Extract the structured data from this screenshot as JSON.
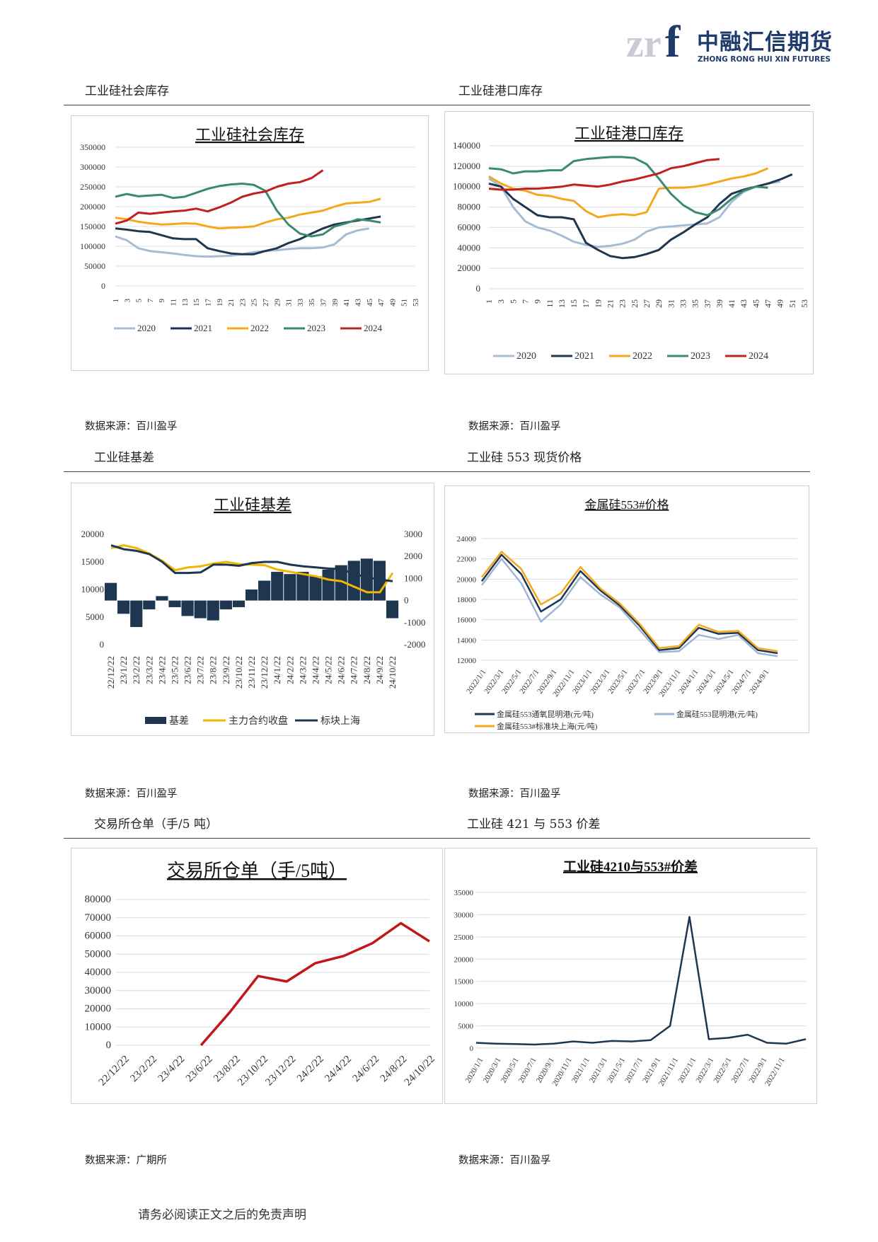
{
  "header": {
    "logo_main": "中融汇信期货",
    "logo_sub": "ZHONG RONG HUI XIN FUTURES"
  },
  "colors": {
    "c2020": "#a7bcd4",
    "c2021": "#1f3650",
    "c2022": "#f4a81c",
    "c2023": "#3a8a72",
    "c2024": "#c21f1f",
    "navy": "#1f3650",
    "gold": "#f2b600",
    "red": "#c2161b"
  },
  "sections": [
    {
      "title": "工业硅社会库存",
      "source": "数据来源：百川盈孚"
    },
    {
      "title": "工业硅港口库存",
      "source": "数据来源：百川盈孚"
    },
    {
      "title": "工业硅基差",
      "source": "数据来源：百川盈孚"
    },
    {
      "title": "工业硅 553 现货价格",
      "source": "数据来源：百川盈孚"
    },
    {
      "title": "交易所仓单（手/5 吨）",
      "source": "数据来源：广期所"
    },
    {
      "title": "工业硅 421 与 553 价差",
      "source": "数据来源：百川盈孚"
    }
  ],
  "footer": "请务必阅读正文之后的免责声明",
  "chart_data": [
    {
      "type": "line",
      "title": "工业硅社会库存",
      "categories": [
        "1",
        "3",
        "5",
        "7",
        "9",
        "11",
        "13",
        "15",
        "17",
        "19",
        "21",
        "23",
        "25",
        "27",
        "29",
        "31",
        "33",
        "35",
        "37",
        "39",
        "41",
        "43",
        "45",
        "47",
        "49",
        "51",
        "53"
      ],
      "ylim": [
        0,
        350000
      ],
      "yticks": [
        "0",
        "50000",
        "100000",
        "150000",
        "200000",
        "250000",
        "300000",
        "350000"
      ],
      "legend": "bottom",
      "series": [
        {
          "name": "2020",
          "values": [
            125000,
            115000,
            95000,
            88000,
            85000,
            82000,
            78000,
            75000,
            74000,
            75000,
            76000,
            80000,
            85000,
            88000,
            90000,
            93000,
            95000,
            95000,
            97000,
            105000,
            130000,
            140000,
            145000,
            null,
            null,
            null,
            null
          ]
        },
        {
          "name": "2021",
          "values": [
            145000,
            142000,
            138000,
            136000,
            128000,
            120000,
            118000,
            118000,
            95000,
            88000,
            82000,
            80000,
            80000,
            88000,
            95000,
            108000,
            118000,
            132000,
            145000,
            155000,
            160000,
            165000,
            170000,
            175000,
            null,
            null,
            null
          ]
        },
        {
          "name": "2022",
          "values": [
            172000,
            168000,
            162000,
            158000,
            155000,
            156000,
            158000,
            157000,
            150000,
            145000,
            147000,
            148000,
            150000,
            160000,
            168000,
            172000,
            180000,
            185000,
            190000,
            200000,
            208000,
            210000,
            212000,
            220000,
            null,
            null,
            null
          ]
        },
        {
          "name": "2023",
          "values": [
            225000,
            232000,
            226000,
            228000,
            230000,
            222000,
            225000,
            235000,
            245000,
            252000,
            256000,
            258000,
            255000,
            240000,
            190000,
            155000,
            132000,
            125000,
            130000,
            150000,
            158000,
            168000,
            165000,
            160000,
            null,
            null,
            null
          ]
        },
        {
          "name": "2024",
          "values": [
            157000,
            165000,
            185000,
            182000,
            185000,
            188000,
            190000,
            195000,
            188000,
            198000,
            210000,
            225000,
            233000,
            238000,
            250000,
            258000,
            262000,
            272000,
            292000,
            null,
            null,
            null,
            null,
            null,
            null,
            null,
            null
          ]
        }
      ]
    },
    {
      "type": "line",
      "title": "工业硅港口库存",
      "categories": [
        "1",
        "3",
        "5",
        "7",
        "9",
        "11",
        "13",
        "15",
        "17",
        "19",
        "21",
        "23",
        "25",
        "27",
        "29",
        "31",
        "33",
        "35",
        "37",
        "39",
        "41",
        "43",
        "45",
        "47",
        "49",
        "51",
        "53"
      ],
      "ylim": [
        0,
        140000
      ],
      "yticks": [
        "0",
        "20000",
        "40000",
        "60000",
        "80000",
        "100000",
        "120000",
        "140000"
      ],
      "legend": "bottom",
      "series": [
        {
          "name": "2020",
          "values": [
            108000,
            100000,
            80000,
            66000,
            60000,
            57000,
            52000,
            46000,
            43000,
            41000,
            42000,
            44000,
            48000,
            56000,
            60000,
            61000,
            62000,
            63000,
            64000,
            70000,
            85000,
            95000,
            100000,
            103000,
            105000,
            null,
            null
          ]
        },
        {
          "name": "2021",
          "values": [
            103000,
            100000,
            88000,
            80000,
            72000,
            70000,
            70000,
            68000,
            45000,
            38000,
            32000,
            30000,
            31000,
            34000,
            38000,
            48000,
            55000,
            63000,
            70000,
            83000,
            93000,
            97000,
            100000,
            103000,
            107000,
            112000,
            null
          ]
        },
        {
          "name": "2022",
          "values": [
            110000,
            103000,
            98000,
            96000,
            92000,
            91000,
            88000,
            86000,
            76000,
            70000,
            72000,
            73000,
            72000,
            75000,
            98000,
            99000,
            99000,
            100000,
            102000,
            105000,
            108000,
            110000,
            113000,
            118000,
            null,
            null,
            null
          ]
        },
        {
          "name": "2023",
          "values": [
            118000,
            117000,
            113000,
            115000,
            115000,
            116000,
            116000,
            125000,
            127000,
            128000,
            129000,
            129000,
            128000,
            122000,
            108000,
            93000,
            82000,
            75000,
            72000,
            78000,
            88000,
            96000,
            100000,
            99000,
            null,
            null,
            null
          ]
        },
        {
          "name": "2024",
          "values": [
            98000,
            97000,
            97000,
            98000,
            98000,
            99000,
            100000,
            102000,
            101000,
            100000,
            102000,
            105000,
            107000,
            110000,
            113000,
            118000,
            120000,
            123000,
            126000,
            127000,
            null,
            null,
            null,
            null,
            null,
            null,
            null
          ]
        }
      ]
    },
    {
      "type": "bar+line",
      "title": "工业硅基差",
      "categories": [
        "22/12/22",
        "23/1/22",
        "23/2/22",
        "23/3/22",
        "23/4/22",
        "23/5/22",
        "23/6/22",
        "23/7/22",
        "23/8/22",
        "23/9/22",
        "23/10/22",
        "23/11/22",
        "23/12/22",
        "24/1/22",
        "24/2/22",
        "24/3/22",
        "24/4/22",
        "24/5/22",
        "24/6/22",
        "24/7/22",
        "24/8/22",
        "24/9/22",
        "24/10/22"
      ],
      "ylim_left": [
        0,
        20000
      ],
      "yticks_left": [
        "0",
        "5000",
        "10000",
        "15000",
        "20000"
      ],
      "ylim_right": [
        -2000,
        3000
      ],
      "yticks_right": [
        "-2000",
        "-1000",
        "0",
        "1000",
        "2000",
        "3000"
      ],
      "series": [
        {
          "name": "基差",
          "axis": "right",
          "type": "bar",
          "values": [
            800,
            -600,
            -1200,
            -400,
            200,
            -300,
            -700,
            -800,
            -900,
            -400,
            -300,
            500,
            900,
            1300,
            1200,
            1300,
            1100,
            1400,
            1600,
            1800,
            1900,
            1800,
            -800
          ]
        },
        {
          "name": "主力合约收盘",
          "axis": "left",
          "type": "line",
          "values": [
            17500,
            18000,
            17500,
            16500,
            15200,
            13500,
            14000,
            14200,
            14700,
            15000,
            14600,
            14500,
            14400,
            13600,
            13200,
            12800,
            12400,
            11800,
            11500,
            10500,
            9500,
            9500,
            13000
          ]
        },
        {
          "name": "标块上海",
          "axis": "left",
          "type": "line",
          "values": [
            18000,
            17300,
            17000,
            16400,
            15000,
            13000,
            13000,
            13100,
            14500,
            14500,
            14300,
            14800,
            15000,
            15000,
            14500,
            14200,
            14000,
            13800,
            13700,
            12800,
            12200,
            11800,
            11500
          ]
        }
      ]
    },
    {
      "type": "line",
      "title": "金属硅553#价格",
      "categories": [
        "2022/1/1",
        "2022/3/1",
        "2022/5/1",
        "2022/7/1",
        "2022/9/1",
        "2022/11/1",
        "2023/1/1",
        "2023/3/1",
        "2023/5/1",
        "2023/7/1",
        "2023/9/1",
        "2023/11/1",
        "2024/1/1",
        "2024/3/1",
        "2024/5/1",
        "2024/7/1",
        "2024/9/1"
      ],
      "ylim": [
        12000,
        24000
      ],
      "yticks": [
        "12000",
        "14000",
        "16000",
        "18000",
        "20000",
        "22000",
        "24000"
      ],
      "series": [
        {
          "name": "金属硅553通氧昆明港(元/吨)",
          "values": [
            19800,
            22400,
            20500,
            16800,
            18000,
            20800,
            18900,
            17400,
            15400,
            13000,
            13200,
            15200,
            14600,
            14700,
            13000,
            12700,
            null
          ]
        },
        {
          "name": "金属硅553昆明港(元/吨)",
          "values": [
            19400,
            22000,
            19600,
            15800,
            17500,
            20200,
            18500,
            17200,
            15000,
            12800,
            12900,
            14500,
            14100,
            14500,
            12700,
            12400,
            null
          ]
        },
        {
          "name": "金属硅553#标准块上海(元/吨)",
          "values": [
            20200,
            22700,
            21000,
            17500,
            18600,
            21200,
            19100,
            17600,
            15600,
            13200,
            13400,
            15500,
            14800,
            14900,
            13200,
            12900,
            null
          ]
        }
      ]
    },
    {
      "type": "line",
      "title": "交易所仓单（手/5吨）",
      "categories": [
        "22/12/22",
        "23/2/22",
        "23/4/22",
        "23/6/22",
        "23/8/22",
        "23/10/22",
        "23/12/22",
        "24/2/22",
        "24/4/22",
        "24/6/22",
        "24/8/22",
        "24/10/22"
      ],
      "ylim": [
        0,
        80000
      ],
      "yticks": [
        "0",
        "10000",
        "20000",
        "30000",
        "40000",
        "50000",
        "60000",
        "70000",
        "80000"
      ],
      "series": [
        {
          "name": "仓单",
          "values": [
            null,
            null,
            null,
            0,
            18000,
            38000,
            35000,
            45000,
            49000,
            56000,
            67000,
            57000
          ]
        }
      ]
    },
    {
      "type": "line",
      "title": "工业硅4210与553#价差",
      "categories": [
        "2020/1/1",
        "2020/3/1",
        "2020/5/1",
        "2020/7/1",
        "2020/9/1",
        "2020/11/1",
        "2021/1/1",
        "2021/3/1",
        "2021/5/1",
        "2021/7/1",
        "2021/9/1",
        "2021/11/1",
        "2022/1/1",
        "2022/3/1",
        "2022/5/1",
        "2022/7/1",
        "2022/9/1",
        "2022/11/1"
      ],
      "ylim": [
        0,
        35000
      ],
      "yticks": [
        "0",
        "5000",
        "10000",
        "15000",
        "20000",
        "25000",
        "30000",
        "35000"
      ],
      "series": [
        {
          "name": "价差",
          "values": [
            1200,
            1000,
            900,
            800,
            1000,
            1500,
            1200,
            1600,
            1500,
            1800,
            5000,
            29500,
            2000,
            2300,
            3000,
            1200,
            1000,
            2000
          ]
        }
      ]
    }
  ]
}
